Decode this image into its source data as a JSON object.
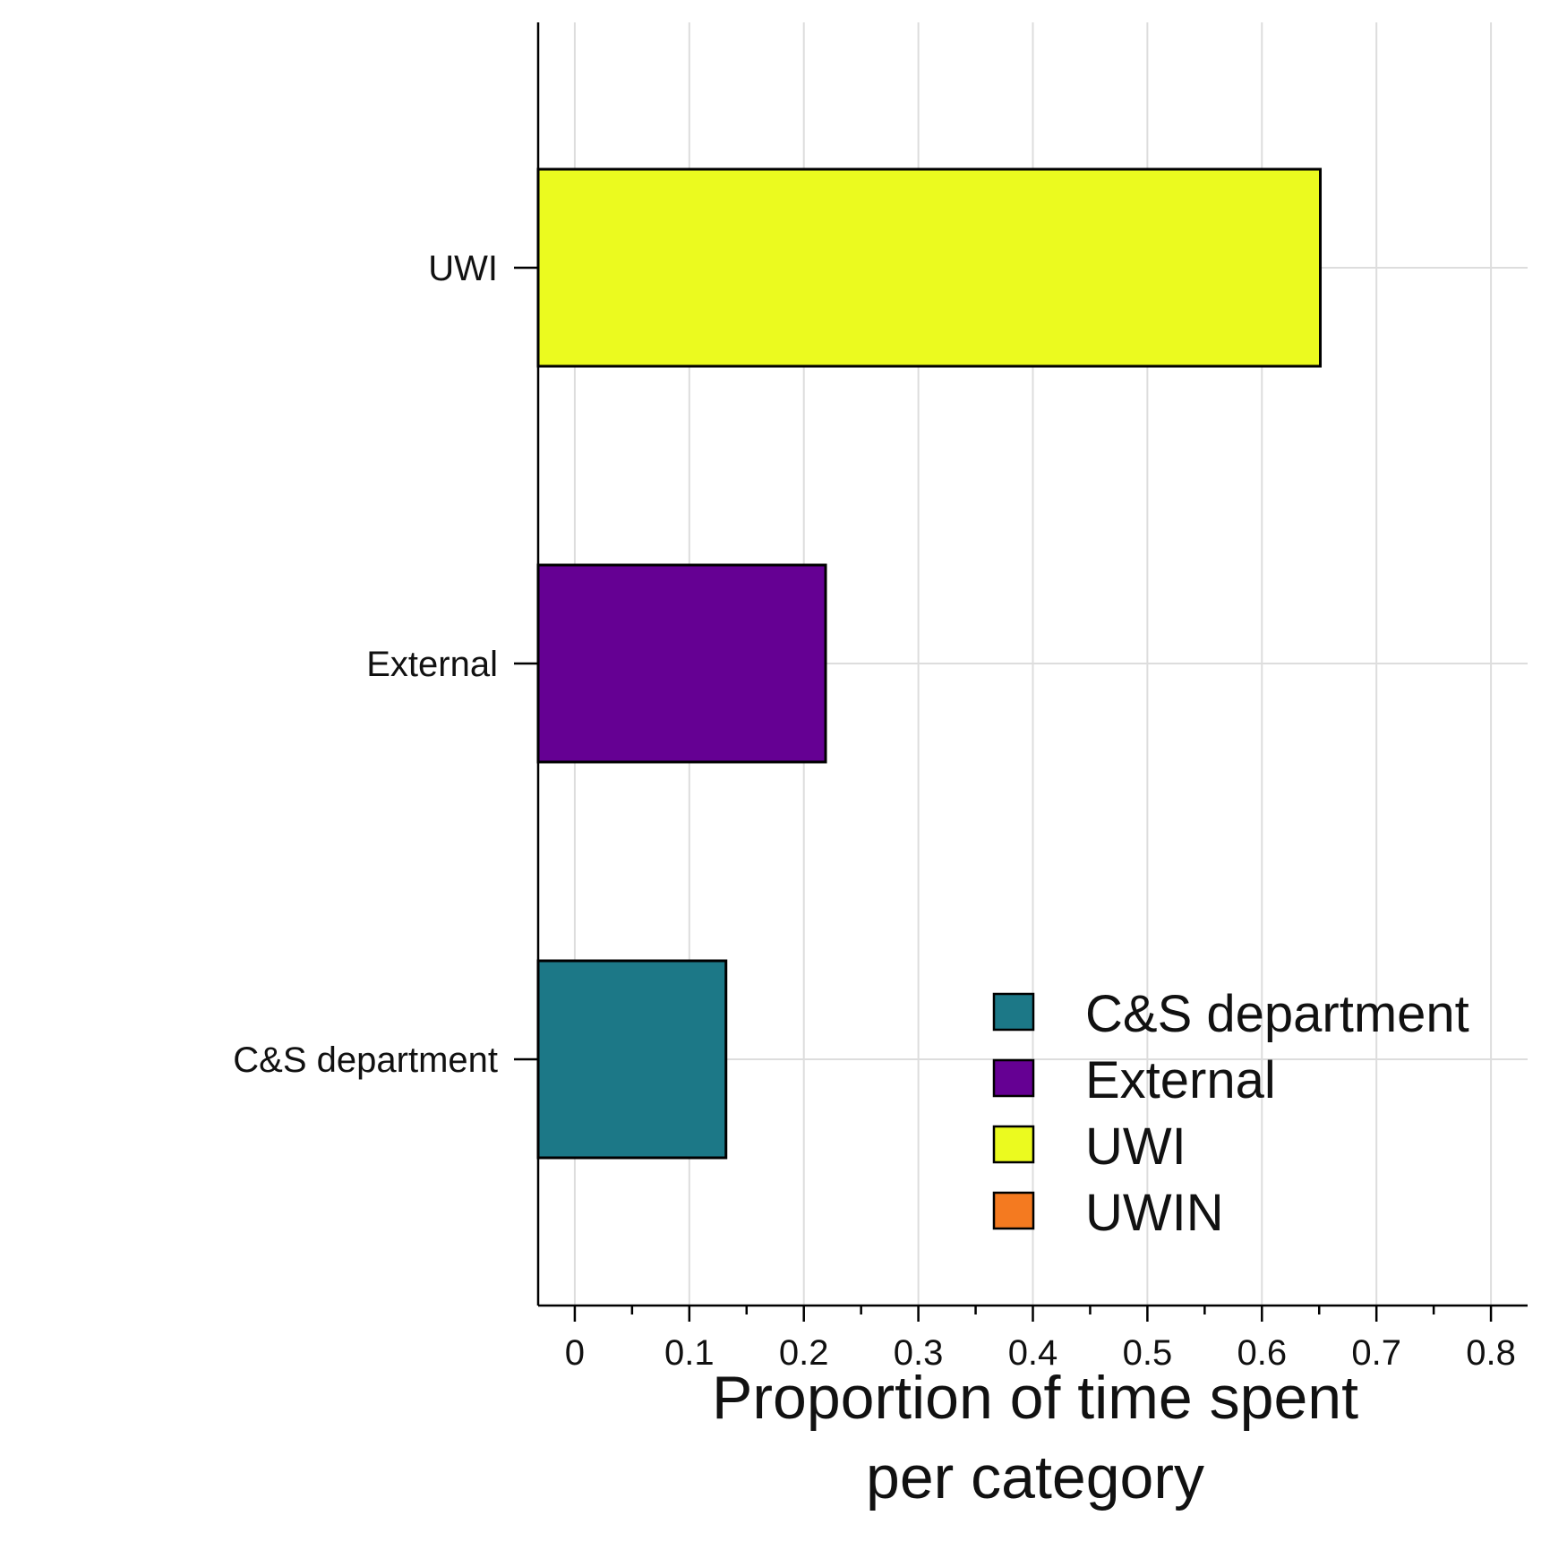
{
  "chart_data": {
    "type": "bar",
    "orientation": "horizontal",
    "categories": [
      "C&S department",
      "External",
      "UWI"
    ],
    "values": [
      0.132,
      0.219,
      0.651
    ],
    "bar_colors": [
      "#1c7887",
      "#650093",
      "#ebfa1f"
    ],
    "xlabel": [
      "Proportion of time spent",
      "per category"
    ],
    "ylabel": "",
    "xlim": [
      -0.032,
      0.832
    ],
    "xticks": [
      0,
      0.1,
      0.2,
      0.3,
      0.4,
      0.5,
      0.6,
      0.7,
      0.8
    ],
    "xtick_labels": [
      "0",
      "0.1",
      "0.2",
      "0.3",
      "0.4",
      "0.5",
      "0.6",
      "0.7",
      "0.8"
    ],
    "grid": true,
    "legend": {
      "placement": "bottom-right",
      "entries": [
        {
          "label": "C&S department",
          "color": "#1c7887"
        },
        {
          "label": "External",
          "color": "#650093"
        },
        {
          "label": "UWI",
          "color": "#ebfa1f"
        },
        {
          "label": "UWIN",
          "color": "#f47a20"
        }
      ]
    }
  }
}
